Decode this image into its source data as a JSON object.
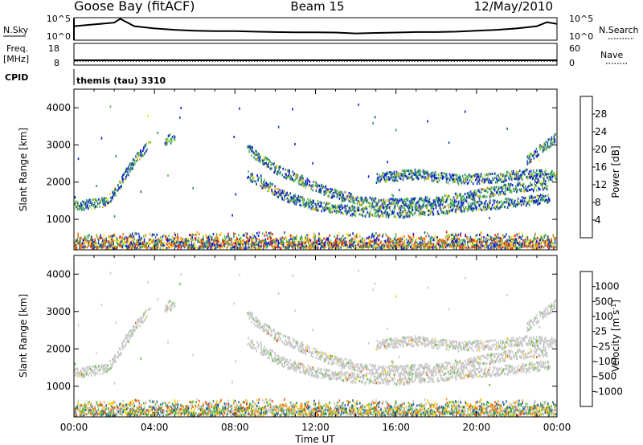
{
  "header": {
    "station": "Goose Bay (fitACF)",
    "beam": "Beam 15",
    "date": "12/May/2010"
  },
  "top_panels": {
    "nsky_label": "N.Sky",
    "nsky_ticks": [
      "10^5",
      "10^0"
    ],
    "nsearch_label": "N.Search",
    "nsearch_ticks": [
      "10^5",
      "10^0"
    ],
    "freq_label": "Freq.",
    "freq_unit": "[MHz]",
    "freq_ticks": [
      "18",
      "8"
    ],
    "nave_label": "Nave",
    "nave_ticks": [
      "60",
      "0"
    ],
    "cpid_label": "CPID",
    "cpid_value": "themis (tau) 3310"
  },
  "chart_data": [
    {
      "type": "heatmap",
      "panel": "power",
      "ylabel": "Slant Range [km]",
      "xlabel": "",
      "xlim": [
        0,
        24
      ],
      "ylim": [
        180,
        4500
      ],
      "yticks": [
        "1000",
        "2000",
        "3000",
        "4000"
      ],
      "colorbar": {
        "label": "Power [dB]",
        "ticks": [
          "4",
          "8",
          "12",
          "16",
          "20",
          "24",
          "28"
        ],
        "colors": [
          "#0a18d8",
          "#1a4aa8",
          "#2f8a6e",
          "#5ab84a",
          "#f2e620",
          "#f5a21a",
          "#ef6a12",
          "#e41d0d"
        ]
      },
      "echo_bands": [
        {
          "t": [
            0.0,
            1.0,
            1.5,
            2.0,
            2.6,
            3.2,
            3.7
          ],
          "r": [
            1350,
            1400,
            1450,
            1700,
            2250,
            2700,
            3000
          ]
        },
        {
          "t": [
            4.5,
            5.0
          ],
          "r": [
            3100,
            3200
          ]
        },
        {
          "t": [
            8.6,
            9.2,
            10.0,
            11.0,
            12.0,
            13.0,
            14.5,
            16.0,
            17.5,
            19.0,
            20.5,
            22.0,
            23.5
          ],
          "r": [
            2900,
            2650,
            2350,
            2100,
            1850,
            1650,
            1450,
            1400,
            1450,
            1550,
            1700,
            1850,
            1900
          ]
        },
        {
          "t": [
            8.6,
            9.5,
            10.5,
            12.0,
            14.0,
            16.0,
            18.0,
            20.0,
            22.0,
            23.6
          ],
          "r": [
            2200,
            1900,
            1600,
            1350,
            1200,
            1150,
            1250,
            1350,
            1450,
            1550
          ]
        },
        {
          "t": [
            15.0,
            17.0,
            19.0,
            21.0,
            22.5,
            24.0
          ],
          "r": [
            2100,
            2200,
            2050,
            2100,
            2200,
            2150
          ]
        },
        {
          "t": [
            22.5,
            23.0,
            23.5,
            24.0
          ],
          "r": [
            2600,
            2800,
            3000,
            3200
          ]
        }
      ],
      "near_range_band": {
        "t": [
          0.0,
          24.0
        ],
        "r": [
          200,
          650
        ]
      }
    },
    {
      "type": "heatmap",
      "panel": "velocity",
      "ylabel": "Slant Range [km]",
      "xlabel": "Time UT",
      "xlim": [
        0,
        24
      ],
      "ylim": [
        180,
        4500
      ],
      "xticks": [
        "00:00",
        "04:00",
        "08:00",
        "12:00",
        "16:00",
        "20:00",
        "00:00"
      ],
      "yticks": [
        "1000",
        "2000",
        "3000",
        "4000"
      ],
      "colorbar": {
        "label": "Velocity [m s",
        "unit_exponent": "-1",
        "label_close": "]",
        "ticks": [
          "1000",
          "500",
          "100",
          "25",
          "-25",
          "-100",
          "-500",
          "-1000"
        ],
        "colors": [
          "#1c1ed0",
          "#2662a8",
          "#2f8a5a",
          "#62c03a",
          "#c8c8c8",
          "#f2d31a",
          "#f5a21a",
          "#ef5a12",
          "#e41d0d"
        ]
      }
    }
  ],
  "timeseries": {
    "nsky_x": [
      0,
      1,
      2,
      2.3,
      3,
      4,
      5,
      6,
      7,
      8,
      9,
      10,
      11,
      12,
      13,
      14,
      15,
      16,
      17,
      18,
      19,
      20,
      21,
      22,
      23,
      23.5,
      24
    ],
    "nsky_y": [
      0.62,
      0.7,
      0.78,
      0.95,
      0.62,
      0.52,
      0.46,
      0.42,
      0.4,
      0.4,
      0.38,
      0.36,
      0.35,
      0.35,
      0.34,
      0.3,
      0.32,
      0.34,
      0.36,
      0.36,
      0.38,
      0.42,
      0.46,
      0.52,
      0.62,
      0.8,
      0.72
    ],
    "freq_level": 0.22,
    "nave_level": 0.18
  }
}
